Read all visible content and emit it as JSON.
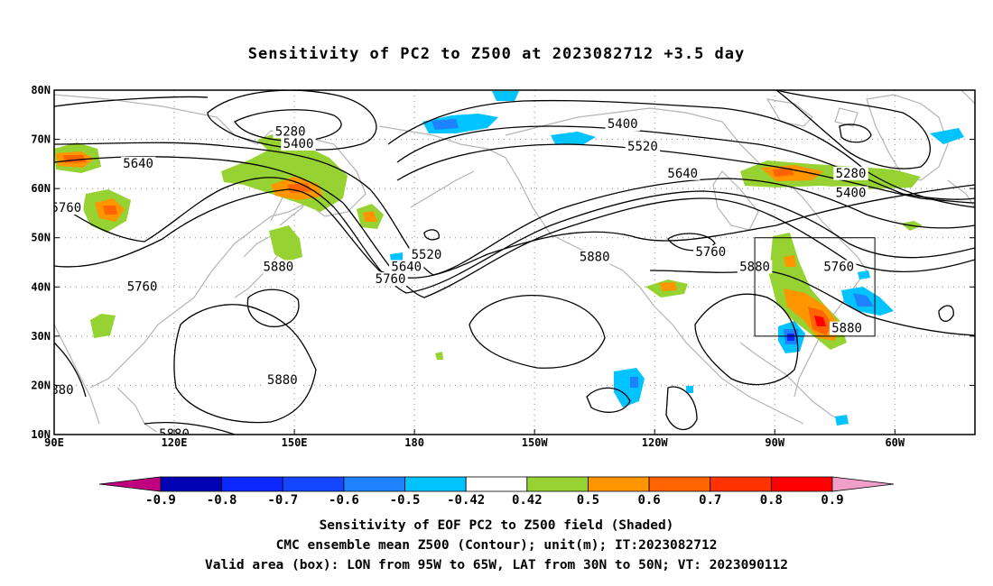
{
  "title": "Sensitivity of PC2 to Z500 at 2023082712 +3.5 day",
  "axes": {
    "lat_ticks": [
      "80N",
      "70N",
      "60N",
      "50N",
      "40N",
      "30N",
      "20N",
      "10N"
    ],
    "lon_ticks": [
      "90E",
      "120E",
      "150E",
      "180",
      "150W",
      "120W",
      "90W",
      "60W"
    ]
  },
  "contour_labels": [
    {
      "text": "5280",
      "lon": 149,
      "lat": 71.5
    },
    {
      "text": "5400",
      "lon": 151,
      "lat": 69
    },
    {
      "text": "5640",
      "lon": 111,
      "lat": 65
    },
    {
      "text": "5760",
      "lon": 93,
      "lat": 56
    },
    {
      "text": "5880",
      "lon": 146,
      "lat": 44
    },
    {
      "text": "5760",
      "lon": 112,
      "lat": 40
    },
    {
      "text": "5880",
      "lon": 147,
      "lat": 21
    },
    {
      "text": "880",
      "lon": 92,
      "lat": 19
    },
    {
      "text": "5880",
      "lon": 120,
      "lat": 10
    },
    {
      "text": "5520",
      "lon": 183,
      "lat": 46.5
    },
    {
      "text": "5640",
      "lon": 178,
      "lat": 44
    },
    {
      "text": "5760",
      "lon": 174,
      "lat": 41.5
    },
    {
      "text": "5400",
      "lon": 232,
      "lat": 73
    },
    {
      "text": "5520",
      "lon": 237,
      "lat": 68.5
    },
    {
      "text": "5640",
      "lon": 247,
      "lat": 63
    },
    {
      "text": "5880",
      "lon": 225,
      "lat": 46
    },
    {
      "text": "5760",
      "lon": 254,
      "lat": 47
    },
    {
      "text": "5880",
      "lon": 265,
      "lat": 44
    },
    {
      "text": "5760",
      "lon": 286,
      "lat": 44
    },
    {
      "text": "5280",
      "lon": 289,
      "lat": 63
    },
    {
      "text": "5400",
      "lon": 289,
      "lat": 59
    },
    {
      "text": "5880",
      "lon": 288,
      "lat": 31.5
    }
  ],
  "colorbar": {
    "labels": [
      "-0.9",
      "-0.8",
      "-0.7",
      "-0.6",
      "-0.5",
      "-0.42",
      "0.42",
      "0.5",
      "0.6",
      "0.7",
      "0.8",
      "0.9"
    ],
    "colors": [
      "#c0007f",
      "#0000b4",
      "#0a28ff",
      "#1446ff",
      "#1e82ff",
      "#00c3ff",
      "#ffffff",
      "#96d232",
      "#ff9600",
      "#ff6400",
      "#ff3200",
      "#ff0000",
      "#f0a0c8"
    ]
  },
  "captions": [
    "Sensitivity of EOF PC2 to Z500 field (Shaded)",
    "CMC ensemble mean Z500 (Contour); unit(m); IT:2023082712",
    "Valid area (box): LON from 95W to 65W, LAT from 30N to 50N; VT: 2023090112"
  ],
  "valid_area": {
    "lon_min": 265,
    "lon_max": 295,
    "lat_min": 30,
    "lat_max": 50
  }
}
